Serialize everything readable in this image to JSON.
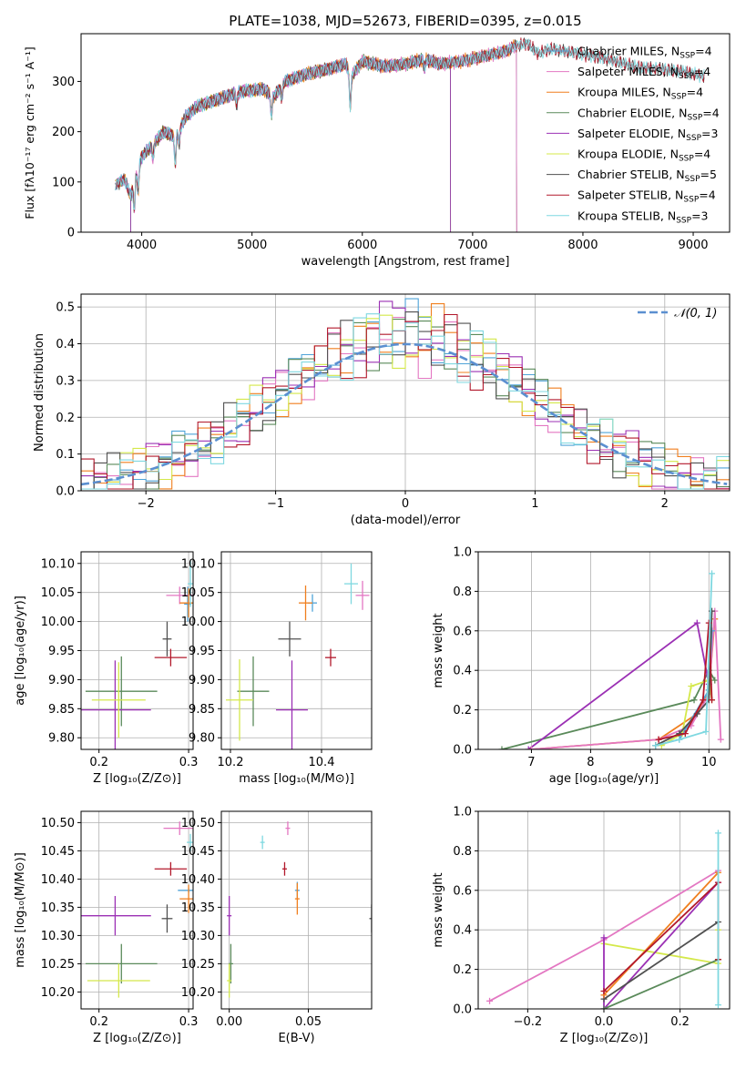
{
  "colors": {
    "chabrier_miles": "#4fa3d8",
    "salpeter_miles": "#e377c2",
    "kroupa_miles": "#f07f1e",
    "chabrier_elodie": "#5a8a5a",
    "salpeter_elodie": "#9b30b4",
    "kroupa_elodie": "#d4e84a",
    "chabrier_stelib": "#505050",
    "salpeter_stelib": "#b2182b",
    "kroupa_stelib": "#7fd8e0",
    "normal_dist": "#5b8fd0"
  },
  "chart_data": [
    {
      "id": "spectrum",
      "type": "line",
      "title": "PLATE=1038, MJD=52673, FIBERID=0395, z=0.015",
      "xlabel": "wavelength [Angstrom, rest frame]",
      "ylabel": "Flux [fλ10⁻¹⁷ erg cm⁻² s⁻¹ A⁻¹]",
      "xlim": [
        3450,
        9330
      ],
      "ylim": [
        0,
        395
      ],
      "xticks": [
        4000,
        5000,
        6000,
        7000,
        8000,
        9000
      ],
      "yticks": [
        0,
        100,
        200,
        300
      ],
      "legend_position": "top-right",
      "legend": [
        {
          "key": "chabrier_miles",
          "label": "Chabrier MILES, N",
          "sub": "SSP",
          "suffix": "=4"
        },
        {
          "key": "salpeter_miles",
          "label": "Salpeter MILES, N",
          "sub": "SSP",
          "suffix": "=4"
        },
        {
          "key": "kroupa_miles",
          "label": "Kroupa MILES, N",
          "sub": "SSP",
          "suffix": "=4"
        },
        {
          "key": "chabrier_elodie",
          "label": "Chabrier ELODIE, N",
          "sub": "SSP",
          "suffix": "=4"
        },
        {
          "key": "salpeter_elodie",
          "label": "Salpeter ELODIE, N",
          "sub": "SSP",
          "suffix": "=3"
        },
        {
          "key": "kroupa_elodie",
          "label": "Kroupa ELODIE, N",
          "sub": "SSP",
          "suffix": "=4"
        },
        {
          "key": "chabrier_stelib",
          "label": "Chabrier STELIB, N",
          "sub": "SSP",
          "suffix": "=5"
        },
        {
          "key": "salpeter_stelib",
          "label": "Salpeter STELIB, N",
          "sub": "SSP",
          "suffix": "=4"
        },
        {
          "key": "kroupa_stelib",
          "label": "Kroupa STELIB, N",
          "sub": "SSP",
          "suffix": "=3"
        }
      ],
      "continuum": [
        [
          3760,
          95
        ],
        [
          3850,
          105
        ],
        [
          3900,
          70
        ],
        [
          3950,
          120
        ],
        [
          4000,
          150
        ],
        [
          4100,
          175
        ],
        [
          4200,
          200
        ],
        [
          4300,
          190
        ],
        [
          4400,
          230
        ],
        [
          4500,
          250
        ],
        [
          4700,
          265
        ],
        [
          4900,
          280
        ],
        [
          5100,
          285
        ],
        [
          5200,
          270
        ],
        [
          5300,
          300
        ],
        [
          5500,
          315
        ],
        [
          5700,
          325
        ],
        [
          5850,
          335
        ],
        [
          5900,
          310
        ],
        [
          6000,
          340
        ],
        [
          6200,
          330
        ],
        [
          6400,
          335
        ],
        [
          6563,
          345
        ],
        [
          6700,
          335
        ],
        [
          6900,
          340
        ],
        [
          7100,
          350
        ],
        [
          7300,
          360
        ],
        [
          7400,
          372
        ],
        [
          7500,
          375
        ],
        [
          7600,
          355
        ],
        [
          7700,
          365
        ],
        [
          7900,
          358
        ],
        [
          8100,
          350
        ],
        [
          8300,
          340
        ],
        [
          8500,
          328
        ],
        [
          8700,
          325
        ],
        [
          8900,
          320
        ],
        [
          9100,
          310
        ]
      ],
      "absorption": [
        [
          3933,
          60
        ],
        [
          3968,
          50
        ],
        [
          4102,
          30
        ],
        [
          4304,
          55
        ],
        [
          4340,
          30
        ],
        [
          4861,
          25
        ],
        [
          5175,
          40
        ],
        [
          5270,
          25
        ],
        [
          5890,
          65
        ],
        [
          6563,
          20
        ]
      ],
      "model_ends": {
        "chabrier_miles": 7400,
        "salpeter_miles": 7400,
        "kroupa_miles": 7400,
        "chabrier_elodie": 6800,
        "salpeter_elodie": 6800,
        "kroupa_elodie": 6800
      },
      "model_starts": {
        "chabrier_elodie": 3900,
        "salpeter_elodie": 3900,
        "kroupa_elodie": 3900
      }
    },
    {
      "id": "residuals",
      "type": "area",
      "xlabel": "(data-model)/error",
      "ylabel": "Normed distribution",
      "xlim": [
        -2.5,
        2.5
      ],
      "ylim": [
        0,
        0.535
      ],
      "xticks": [
        -2,
        -1,
        0,
        1,
        2
      ],
      "yticks": [
        0.0,
        0.1,
        0.2,
        0.3,
        0.4,
        0.5
      ],
      "bin_width": 0.1,
      "legend_position": "top-right",
      "legend": [
        {
          "key": "normal_dist",
          "label": "𝒩(0, 1)"
        }
      ],
      "series_keys": [
        "chabrier_miles",
        "salpeter_miles",
        "kroupa_miles",
        "chabrier_elodie",
        "salpeter_elodie",
        "kroupa_elodie",
        "chabrier_stelib",
        "salpeter_stelib",
        "kroupa_stelib"
      ]
    },
    {
      "id": "age_vs_Z",
      "type": "scatter",
      "xlabel": "Z [log₁₀(Z/Z⊙)]",
      "ylabel": "age  [log₁₀(age/yr)]",
      "xlim": [
        0.18,
        0.305
      ],
      "ylim": [
        9.78,
        10.12
      ],
      "xticks": [
        0.2,
        0.3
      ],
      "yticks": [
        9.8,
        9.85,
        9.9,
        9.95,
        10.0,
        10.05,
        10.1
      ],
      "points": [
        {
          "key": "chabrier_miles",
          "x": 0.299,
          "y": 10.03,
          "xerr": 0.004,
          "yerr": 0.03
        },
        {
          "key": "salpeter_miles",
          "x": 0.29,
          "y": 10.045,
          "xerr": 0.015,
          "yerr": 0.015
        },
        {
          "key": "kroupa_miles",
          "x": 0.3,
          "y": 10.032,
          "xerr": 0.01,
          "yerr": 0.025
        },
        {
          "key": "chabrier_elodie",
          "x": 0.225,
          "y": 9.88,
          "xerr": 0.04,
          "yerr": 0.06
        },
        {
          "key": "salpeter_elodie",
          "x": 0.218,
          "y": 9.848,
          "xerr": 0.04,
          "yerr": 0.085
        },
        {
          "key": "kroupa_elodie",
          "x": 0.222,
          "y": 9.865,
          "xerr": 0.03,
          "yerr": 0.065
        },
        {
          "key": "chabrier_stelib",
          "x": 0.276,
          "y": 9.97,
          "xerr": 0.005,
          "yerr": 0.03
        },
        {
          "key": "salpeter_stelib",
          "x": 0.28,
          "y": 9.938,
          "xerr": 0.018,
          "yerr": 0.015
        },
        {
          "key": "kroupa_stelib",
          "x": 0.302,
          "y": 10.065,
          "xerr": 0.003,
          "yerr": 0.04
        }
      ]
    },
    {
      "id": "age_vs_mass",
      "type": "scatter",
      "xlabel": "mass [log₁₀(M/M⊙)]",
      "ylabel": "",
      "xlim": [
        10.18,
        10.51
      ],
      "ylim": [
        9.78,
        10.12
      ],
      "xticks": [
        10.2,
        10.4
      ],
      "yticks": [
        9.8,
        9.85,
        9.9,
        9.95,
        10.0,
        10.05,
        10.1
      ],
      "points": [
        {
          "key": "chabrier_miles",
          "x": 10.38,
          "y": 10.032,
          "xerr": 0.01,
          "yerr": 0.015
        },
        {
          "key": "salpeter_miles",
          "x": 10.49,
          "y": 10.045,
          "xerr": 0.015,
          "yerr": 0.025
        },
        {
          "key": "kroupa_miles",
          "x": 10.365,
          "y": 10.032,
          "xerr": 0.015,
          "yerr": 0.03
        },
        {
          "key": "chabrier_elodie",
          "x": 10.25,
          "y": 9.88,
          "xerr": 0.035,
          "yerr": 0.06
        },
        {
          "key": "salpeter_elodie",
          "x": 10.335,
          "y": 9.848,
          "xerr": 0.035,
          "yerr": 0.085
        },
        {
          "key": "kroupa_elodie",
          "x": 10.22,
          "y": 9.865,
          "xerr": 0.03,
          "yerr": 0.07
        },
        {
          "key": "chabrier_stelib",
          "x": 10.33,
          "y": 9.97,
          "xerr": 0.025,
          "yerr": 0.03
        },
        {
          "key": "salpeter_stelib",
          "x": 10.42,
          "y": 9.938,
          "xerr": 0.012,
          "yerr": 0.015
        },
        {
          "key": "kroupa_stelib",
          "x": 10.465,
          "y": 10.065,
          "xerr": 0.015,
          "yerr": 0.035
        }
      ]
    },
    {
      "id": "massweight_vs_age",
      "type": "line",
      "xlabel": "age  [log₁₀(age/yr)]",
      "ylabel": "mass weight",
      "xlim": [
        6.1,
        10.35
      ],
      "ylim": [
        0,
        1.0
      ],
      "xticks": [
        7,
        8,
        9,
        10
      ],
      "yticks": [
        0.0,
        0.2,
        0.4,
        0.6,
        0.8,
        1.0
      ],
      "series": [
        {
          "key": "chabrier_elodie",
          "points": [
            [
              6.5,
              0.0
            ],
            [
              9.75,
              0.25
            ],
            [
              10.0,
              0.4
            ],
            [
              10.1,
              0.35
            ]
          ]
        },
        {
          "key": "salpeter_elodie",
          "points": [
            [
              6.95,
              0.0
            ],
            [
              9.8,
              0.64
            ],
            [
              10.0,
              0.33
            ]
          ]
        },
        {
          "key": "kroupa_miles",
          "points": [
            [
              7.0,
              0.0
            ],
            [
              9.15,
              0.05
            ],
            [
              9.8,
              0.18
            ],
            [
              10.0,
              0.3
            ],
            [
              10.1,
              0.66
            ]
          ]
        },
        {
          "key": "salpeter_miles",
          "points": [
            [
              7.0,
              0.0
            ],
            [
              9.15,
              0.05
            ],
            [
              9.7,
              0.12
            ],
            [
              10.0,
              0.28
            ],
            [
              10.1,
              0.7
            ],
            [
              10.2,
              0.05
            ]
          ]
        },
        {
          "key": "chabrier_miles",
          "points": [
            [
              9.1,
              0.02
            ],
            [
              9.5,
              0.05
            ],
            [
              10.0,
              0.3
            ],
            [
              10.05,
              0.6
            ]
          ]
        },
        {
          "key": "kroupa_elodie",
          "points": [
            [
              9.2,
              0.02
            ],
            [
              9.55,
              0.08
            ],
            [
              9.7,
              0.32
            ],
            [
              10.0,
              0.35
            ],
            [
              10.05,
              0.25
            ]
          ]
        },
        {
          "key": "chabrier_stelib",
          "points": [
            [
              9.1,
              0.02
            ],
            [
              9.5,
              0.08
            ],
            [
              9.8,
              0.18
            ],
            [
              10.0,
              0.25
            ],
            [
              10.05,
              0.7
            ]
          ]
        },
        {
          "key": "salpeter_stelib",
          "points": [
            [
              9.15,
              0.05
            ],
            [
              9.6,
              0.08
            ],
            [
              9.9,
              0.25
            ],
            [
              10.0,
              0.64
            ],
            [
              10.05,
              0.25
            ]
          ]
        },
        {
          "key": "kroupa_stelib",
          "points": [
            [
              9.1,
              0.02
            ],
            [
              9.5,
              0.05
            ],
            [
              9.95,
              0.09
            ],
            [
              10.05,
              0.89
            ]
          ]
        }
      ]
    },
    {
      "id": "mass_vs_Z",
      "type": "scatter",
      "xlabel": "Z [log₁₀(Z/Z⊙)]",
      "ylabel": "mass [log₁₀(M/M⊙)]",
      "xlim": [
        0.18,
        0.305
      ],
      "ylim": [
        10.17,
        10.52
      ],
      "xticks": [
        0.2,
        0.3
      ],
      "yticks": [
        10.2,
        10.25,
        10.3,
        10.35,
        10.4,
        10.45,
        10.5
      ],
      "points": [
        {
          "key": "chabrier_miles",
          "x": 0.3,
          "y": 10.38,
          "xerr": 0.012,
          "yerr": 0.0
        },
        {
          "key": "salpeter_miles",
          "x": 0.29,
          "y": 10.49,
          "xerr": 0.018,
          "yerr": 0.012
        },
        {
          "key": "kroupa_miles",
          "x": 0.3,
          "y": 10.365,
          "xerr": 0.01,
          "yerr": 0.025
        },
        {
          "key": "chabrier_elodie",
          "x": 0.225,
          "y": 10.25,
          "xerr": 0.04,
          "yerr": 0.035
        },
        {
          "key": "salpeter_elodie",
          "x": 0.218,
          "y": 10.335,
          "xerr": 0.04,
          "yerr": 0.035
        },
        {
          "key": "kroupa_elodie",
          "x": 0.222,
          "y": 10.22,
          "xerr": 0.035,
          "yerr": 0.03
        },
        {
          "key": "chabrier_stelib",
          "x": 0.276,
          "y": 10.33,
          "xerr": 0.006,
          "yerr": 0.025
        },
        {
          "key": "salpeter_stelib",
          "x": 0.28,
          "y": 10.418,
          "xerr": 0.018,
          "yerr": 0.012
        },
        {
          "key": "kroupa_stelib",
          "x": 0.302,
          "y": 10.465,
          "xerr": 0.004,
          "yerr": 0.015
        }
      ]
    },
    {
      "id": "mass_vs_ebv",
      "type": "scatter",
      "xlabel": "E(B-V)",
      "ylabel": "",
      "xlim": [
        -0.005,
        0.09
      ],
      "ylim": [
        10.17,
        10.52
      ],
      "xticks": [
        0.0,
        0.05
      ],
      "yticks": [
        10.2,
        10.25,
        10.3,
        10.35,
        10.4,
        10.45,
        10.5
      ],
      "points": [
        {
          "key": "chabrier_miles",
          "x": 0.043,
          "y": 10.38,
          "xerr": 0.0,
          "yerr": 0.015
        },
        {
          "key": "salpeter_miles",
          "x": 0.037,
          "y": 10.49,
          "xerr": 0.0,
          "yerr": 0.012
        },
        {
          "key": "kroupa_miles",
          "x": 0.043,
          "y": 10.365,
          "xerr": 0.0,
          "yerr": 0.028
        },
        {
          "key": "chabrier_elodie",
          "x": 0.001,
          "y": 10.25,
          "xerr": 0.0,
          "yerr": 0.035
        },
        {
          "key": "salpeter_elodie",
          "x": 0.0,
          "y": 10.335,
          "xerr": 0.0,
          "yerr": 0.035
        },
        {
          "key": "kroupa_elodie",
          "x": 0.0,
          "y": 10.22,
          "xerr": 0.0,
          "yerr": 0.03
        },
        {
          "key": "chabrier_stelib",
          "x": 0.09,
          "y": 10.33,
          "xerr": 0.0,
          "yerr": 0.025
        },
        {
          "key": "salpeter_stelib",
          "x": 0.035,
          "y": 10.418,
          "xerr": 0.0,
          "yerr": 0.012
        },
        {
          "key": "kroupa_stelib",
          "x": 0.021,
          "y": 10.465,
          "xerr": 0.0,
          "yerr": 0.012
        }
      ]
    },
    {
      "id": "massweight_vs_Z",
      "type": "line",
      "xlabel": "Z [log₁₀(Z/Z⊙)]",
      "ylabel": "mass weight",
      "xlim": [
        -0.33,
        0.33
      ],
      "ylim": [
        0,
        1.0
      ],
      "xticks": [
        -0.2,
        0.0,
        0.2
      ],
      "yticks": [
        0.0,
        0.2,
        0.4,
        0.6,
        0.8,
        1.0
      ],
      "series": [
        {
          "key": "salpeter_miles",
          "points": [
            [
              -0.3,
              0.04
            ],
            [
              0.0,
              0.35
            ],
            [
              0.3,
              0.7
            ]
          ]
        },
        {
          "key": "kroupa_elodie",
          "points": [
            [
              0.0,
              0.33
            ],
            [
              0.3,
              0.23
            ],
            [
              0.3,
              0.4
            ]
          ]
        },
        {
          "key": "salpeter_elodie",
          "points": [
            [
              0.0,
              0.36
            ],
            [
              0.0,
              0.0
            ],
            [
              0.3,
              0.64
            ]
          ]
        },
        {
          "key": "chabrier_elodie",
          "points": [
            [
              0.0,
              0.0
            ],
            [
              0.3,
              0.25
            ]
          ]
        },
        {
          "key": "chabrier_stelib",
          "points": [
            [
              0.0,
              0.05
            ],
            [
              0.3,
              0.44
            ]
          ]
        },
        {
          "key": "kroupa_miles",
          "points": [
            [
              0.0,
              0.07
            ],
            [
              0.3,
              0.69
            ]
          ]
        },
        {
          "key": "salpeter_stelib",
          "points": [
            [
              0.0,
              0.09
            ],
            [
              0.3,
              0.64
            ],
            [
              0.3,
              0.25
            ]
          ]
        },
        {
          "key": "kroupa_stelib",
          "points": [
            [
              0.3,
              0.89
            ],
            [
              0.3,
              0.02
            ]
          ]
        }
      ]
    }
  ]
}
